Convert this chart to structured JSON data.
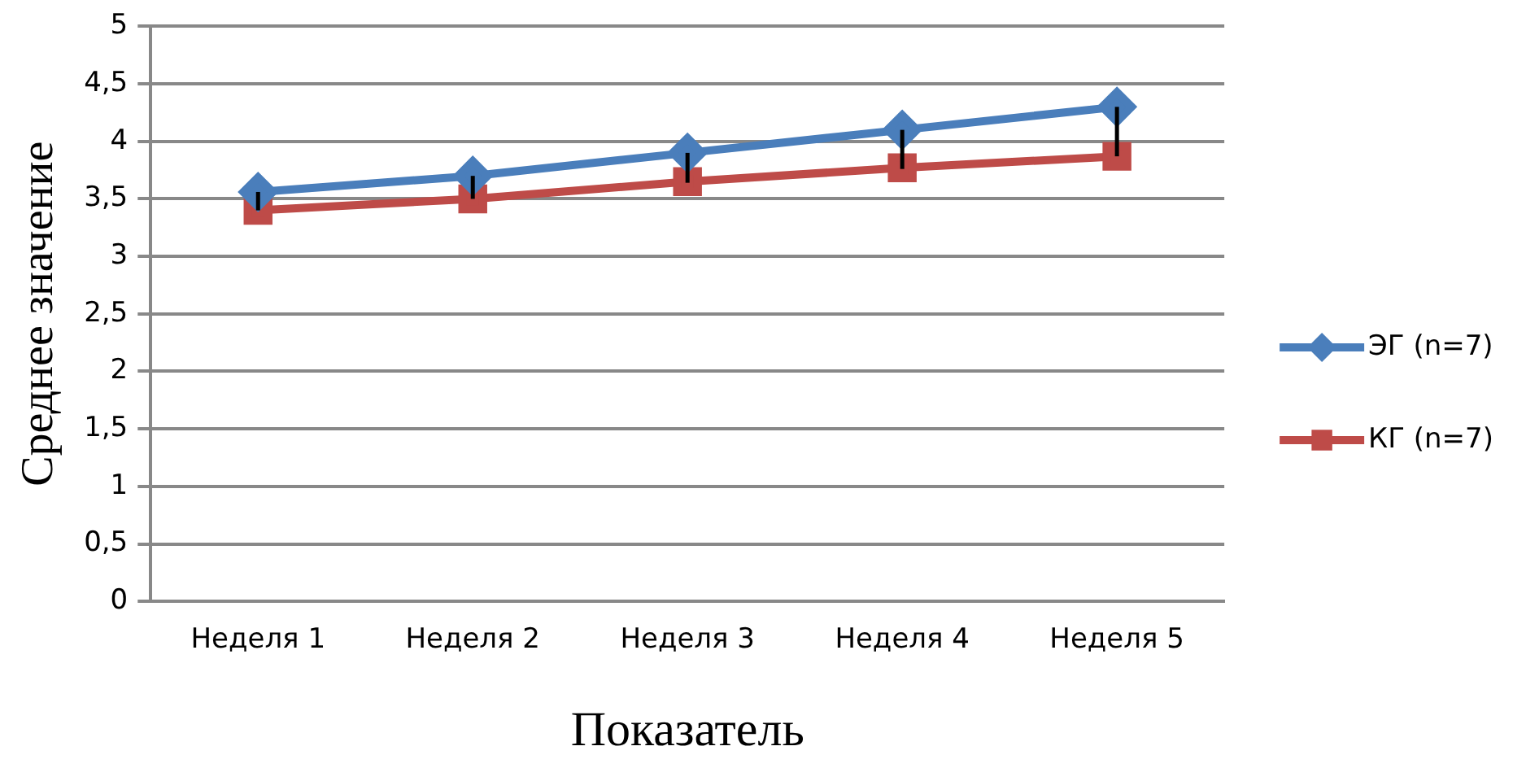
{
  "chart_data": {
    "type": "line",
    "xlabel": "Показатель",
    "ylabel": "Среднее значение",
    "categories": [
      "Неделя 1",
      "Неделя 2",
      "Неделя 3",
      "Неделя 4",
      "Неделя 5"
    ],
    "series": [
      {
        "name": "ЭГ (n=7)",
        "color": "#4a7ebb",
        "marker": "diamond",
        "values": [
          3.56,
          3.7,
          3.9,
          4.1,
          4.3
        ],
        "errors": [
          [
            3.4,
            3.56
          ],
          [
            3.5,
            3.7
          ],
          [
            3.64,
            3.9
          ],
          [
            3.76,
            4.1
          ],
          [
            3.87,
            4.3
          ]
        ]
      },
      {
        "name": "КГ (n=7)",
        "color": "#be4b48",
        "marker": "square",
        "values": [
          3.4,
          3.5,
          3.65,
          3.77,
          3.87
        ]
      }
    ],
    "ylim": [
      0,
      5
    ],
    "yticks": [
      0,
      {
        "value": 0.5,
        "label": "0,5"
      },
      1,
      {
        "value": 1.5,
        "label": "1,5"
      },
      2,
      {
        "value": 2.5,
        "label": "2,5"
      },
      3,
      {
        "value": 3.5,
        "label": "3,5"
      },
      4,
      {
        "value": 4.5,
        "label": "4,5"
      },
      5
    ],
    "grid": "y",
    "legend": "right",
    "line_style": "solid"
  }
}
